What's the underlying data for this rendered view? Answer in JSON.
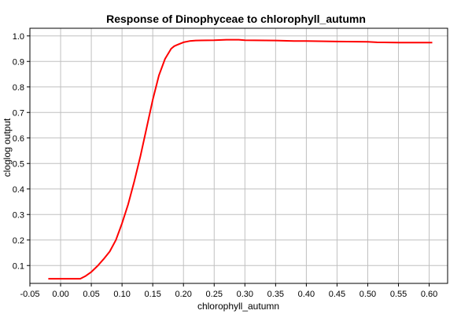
{
  "chart_data": {
    "type": "line",
    "title": "Response of Dinophyceae to chlorophyll_autumn",
    "xlabel": "chlorophyll_autumn",
    "ylabel": "cloglog output",
    "xlim": [
      -0.05,
      0.63
    ],
    "ylim": [
      0.03,
      1.03
    ],
    "xticks": [
      -0.05,
      0.0,
      0.05,
      0.1,
      0.15,
      0.2,
      0.25,
      0.3,
      0.35,
      0.4,
      0.45,
      0.5,
      0.55,
      0.6
    ],
    "xtick_labels": [
      "-0.05",
      "0.00",
      "0.05",
      "0.10",
      "0.15",
      "0.20",
      "0.25",
      "0.30",
      "0.35",
      "0.40",
      "0.45",
      "0.50",
      "0.55",
      "0.60"
    ],
    "yticks": [
      0.1,
      0.2,
      0.3,
      0.4,
      0.5,
      0.6,
      0.7,
      0.8,
      0.9,
      1.0
    ],
    "ytick_labels": [
      "0.1",
      "0.2",
      "0.3",
      "0.4",
      "0.5",
      "0.6",
      "0.7",
      "0.8",
      "0.9",
      "1.0"
    ],
    "grid": true,
    "series": [
      {
        "color": "#ff0000",
        "x": [
          -0.02,
          0.0,
          0.02,
          0.032,
          0.04,
          0.05,
          0.06,
          0.07,
          0.08,
          0.09,
          0.1,
          0.11,
          0.12,
          0.13,
          0.14,
          0.15,
          0.16,
          0.17,
          0.18,
          0.185,
          0.19,
          0.2,
          0.21,
          0.22,
          0.25,
          0.27,
          0.29,
          0.3,
          0.35,
          0.38,
          0.4,
          0.45,
          0.5,
          0.515,
          0.55,
          0.605
        ],
        "y": [
          0.048,
          0.048,
          0.048,
          0.048,
          0.058,
          0.075,
          0.098,
          0.125,
          0.155,
          0.2,
          0.265,
          0.34,
          0.43,
          0.53,
          0.64,
          0.75,
          0.845,
          0.91,
          0.95,
          0.96,
          0.965,
          0.975,
          0.98,
          0.982,
          0.983,
          0.985,
          0.985,
          0.983,
          0.982,
          0.98,
          0.98,
          0.978,
          0.977,
          0.975,
          0.974,
          0.974
        ]
      }
    ]
  }
}
